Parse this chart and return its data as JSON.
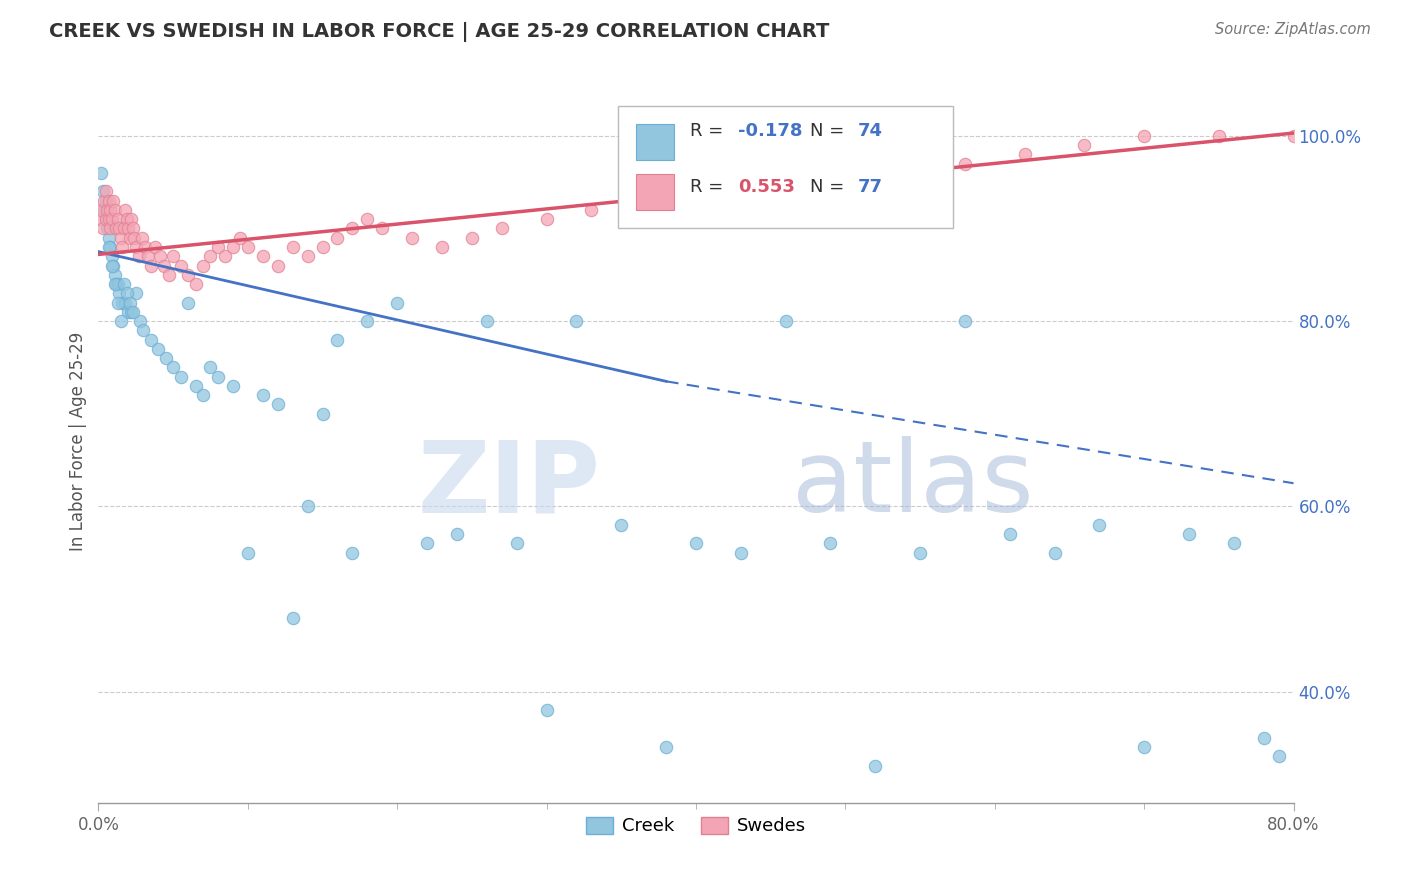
{
  "title": "CREEK VS SWEDISH IN LABOR FORCE | AGE 25-29 CORRELATION CHART",
  "source": "Source: ZipAtlas.com",
  "ylabel_label": "In Labor Force | Age 25-29",
  "xlim": [
    0.0,
    0.8
  ],
  "ylim": [
    0.28,
    1.06
  ],
  "creek_color": "#92c5de",
  "swedes_color": "#f4a5b5",
  "creek_edge": "#6baed6",
  "swedes_edge": "#e08090",
  "creek_R": -0.178,
  "creek_N": 74,
  "swedes_R": 0.553,
  "swedes_N": 77,
  "trend_blue": "#4472c4",
  "trend_pink": "#d9536a",
  "legend_R_color_blue": "#4472c4",
  "legend_R_color_pink": "#d9536a",
  "legend_N_color": "#4472c4",
  "grid_color": "#cccccc",
  "creek_x": [
    0.002,
    0.003,
    0.004,
    0.005,
    0.006,
    0.007,
    0.008,
    0.009,
    0.01,
    0.011,
    0.012,
    0.013,
    0.014,
    0.016,
    0.018,
    0.02,
    0.022,
    0.025,
    0.028,
    0.03,
    0.005,
    0.007,
    0.009,
    0.011,
    0.013,
    0.015,
    0.017,
    0.019,
    0.021,
    0.023,
    0.035,
    0.04,
    0.045,
    0.05,
    0.055,
    0.06,
    0.065,
    0.07,
    0.075,
    0.08,
    0.09,
    0.1,
    0.11,
    0.12,
    0.13,
    0.14,
    0.15,
    0.16,
    0.17,
    0.18,
    0.2,
    0.22,
    0.24,
    0.26,
    0.28,
    0.3,
    0.32,
    0.35,
    0.38,
    0.4,
    0.43,
    0.46,
    0.49,
    0.52,
    0.55,
    0.58,
    0.61,
    0.64,
    0.67,
    0.7,
    0.73,
    0.76,
    0.78,
    0.79
  ],
  "creek_y": [
    0.96,
    0.94,
    0.92,
    0.91,
    0.9,
    0.89,
    0.88,
    0.87,
    0.86,
    0.85,
    0.84,
    0.84,
    0.83,
    0.82,
    0.82,
    0.81,
    0.81,
    0.83,
    0.8,
    0.79,
    0.93,
    0.88,
    0.86,
    0.84,
    0.82,
    0.8,
    0.84,
    0.83,
    0.82,
    0.81,
    0.78,
    0.77,
    0.76,
    0.75,
    0.74,
    0.82,
    0.73,
    0.72,
    0.75,
    0.74,
    0.73,
    0.55,
    0.72,
    0.71,
    0.48,
    0.6,
    0.7,
    0.78,
    0.55,
    0.8,
    0.82,
    0.56,
    0.57,
    0.8,
    0.56,
    0.38,
    0.8,
    0.58,
    0.34,
    0.56,
    0.55,
    0.8,
    0.56,
    0.32,
    0.55,
    0.8,
    0.57,
    0.55,
    0.58,
    0.34,
    0.57,
    0.56,
    0.35,
    0.33
  ],
  "swedes_x": [
    0.001,
    0.002,
    0.003,
    0.004,
    0.005,
    0.005,
    0.006,
    0.007,
    0.007,
    0.008,
    0.008,
    0.009,
    0.01,
    0.011,
    0.012,
    0.013,
    0.014,
    0.015,
    0.016,
    0.017,
    0.018,
    0.019,
    0.02,
    0.021,
    0.022,
    0.023,
    0.024,
    0.025,
    0.027,
    0.029,
    0.031,
    0.033,
    0.035,
    0.038,
    0.041,
    0.044,
    0.047,
    0.05,
    0.055,
    0.06,
    0.065,
    0.07,
    0.075,
    0.08,
    0.085,
    0.09,
    0.095,
    0.1,
    0.11,
    0.12,
    0.13,
    0.14,
    0.15,
    0.16,
    0.17,
    0.18,
    0.19,
    0.21,
    0.23,
    0.25,
    0.27,
    0.3,
    0.33,
    0.36,
    0.38,
    0.4,
    0.42,
    0.45,
    0.48,
    0.51,
    0.54,
    0.58,
    0.62,
    0.66,
    0.7,
    0.75,
    0.8
  ],
  "swedes_y": [
    0.91,
    0.92,
    0.9,
    0.93,
    0.91,
    0.94,
    0.92,
    0.93,
    0.91,
    0.9,
    0.92,
    0.91,
    0.93,
    0.92,
    0.9,
    0.91,
    0.9,
    0.89,
    0.88,
    0.9,
    0.92,
    0.91,
    0.9,
    0.89,
    0.91,
    0.9,
    0.89,
    0.88,
    0.87,
    0.89,
    0.88,
    0.87,
    0.86,
    0.88,
    0.87,
    0.86,
    0.85,
    0.87,
    0.86,
    0.85,
    0.84,
    0.86,
    0.87,
    0.88,
    0.87,
    0.88,
    0.89,
    0.88,
    0.87,
    0.86,
    0.88,
    0.87,
    0.88,
    0.89,
    0.9,
    0.91,
    0.9,
    0.89,
    0.88,
    0.89,
    0.9,
    0.91,
    0.92,
    0.93,
    0.94,
    0.95,
    0.94,
    0.95,
    0.96,
    0.97,
    0.96,
    0.97,
    0.98,
    0.99,
    1.0,
    1.0,
    1.0
  ],
  "yticks": [
    0.4,
    0.6,
    0.8,
    1.0
  ],
  "ytick_labels": [
    "40.0%",
    "60.0%",
    "80.0%",
    "100.0%"
  ],
  "xtick_labels": [
    "0.0%",
    "80.0%"
  ],
  "xtick_vals": [
    0.0,
    0.8
  ],
  "watermark_zip": "ZIP",
  "watermark_atlas": "atlas",
  "background_color": "#ffffff",
  "marker_size": 80
}
